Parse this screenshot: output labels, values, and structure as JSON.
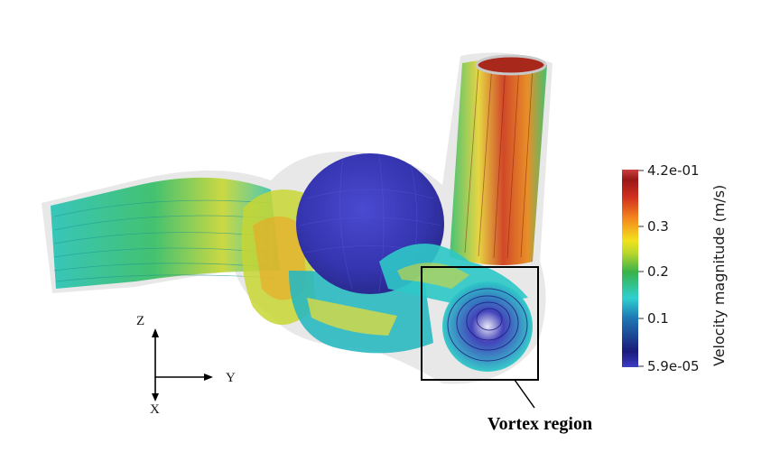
{
  "colorbar": {
    "title": "Velocity magnitude (m/s)",
    "max_label": "4.2e-01",
    "ticks": [
      "0.3",
      "0.2",
      "0.1"
    ],
    "min_label": "5.9e-05",
    "colors": [
      "#3b3bbf",
      "#1a1a80",
      "#1e6fb0",
      "#2ec8c8",
      "#33b04a",
      "#b8d42a",
      "#f0e11c",
      "#f58a1e",
      "#d2321f",
      "#9e1a1a",
      "#c73b3b"
    ]
  },
  "axes": {
    "z": "Z",
    "y": "Y",
    "x": "X"
  },
  "annotation": {
    "label": "Vortex region"
  },
  "palette": {
    "low": "#2a2aa0",
    "cyan": "#2ec8c8",
    "green": "#4fbf5a",
    "yellow": "#e8e23a",
    "orange": "#f29a1e",
    "red": "#c2301e",
    "shell": "#cfcfcf"
  }
}
